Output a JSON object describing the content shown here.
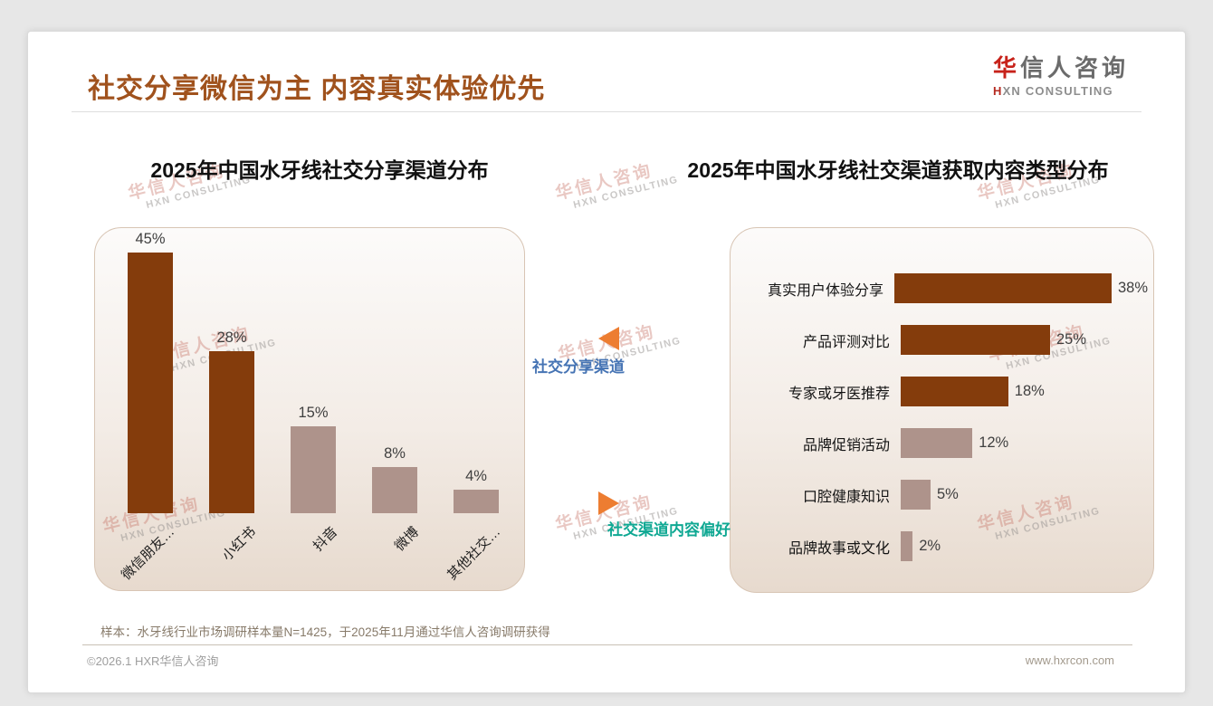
{
  "header": {
    "title": "社交分享微信为主 内容真实体验优先",
    "logo": {
      "zh_accent": "华",
      "zh_rest": "信人咨询",
      "en_accent": "H",
      "en_rest": "XN CONSULTING"
    }
  },
  "watermark": {
    "zh": "华信人咨询",
    "en": "HXN CONSULTING"
  },
  "connectors": {
    "share_channel_label": "社交分享渠道",
    "content_preference_label": "社交渠道内容偏好"
  },
  "footnote": "样本：水牙线行业市场调研样本量N=1425，于2025年11月通过华信人咨询调研获得",
  "footer": {
    "copyright": "©2026.1 HXR华信人咨询",
    "website": "www.hxrcon.com"
  },
  "colors": {
    "dark_brown_bar": "#843C0C",
    "mauve_bar": "#AE938B",
    "accent_orange": "#ED7D31",
    "title_brown": "#A0521D",
    "blue_label": "#4674B4",
    "teal_label": "#0FA893",
    "logo_red": "#C7221A"
  },
  "chart_data": [
    {
      "type": "bar",
      "orientation": "vertical",
      "title": "2025年中国水牙线社交分享渠道分布",
      "categories": [
        "微信朋友…",
        "小红书",
        "抖音",
        "微博",
        "其他社交…"
      ],
      "values": [
        45,
        28,
        15,
        8,
        4
      ],
      "value_labels": [
        "45%",
        "28%",
        "15%",
        "8%",
        "4%"
      ],
      "bar_colors": [
        "#843C0C",
        "#843C0C",
        "#AE938B",
        "#AE938B",
        "#AE938B"
      ],
      "ylim": [
        0,
        50
      ],
      "grid": false,
      "legend": false
    },
    {
      "type": "bar",
      "orientation": "horizontal",
      "title": "2025年中国水牙线社交渠道获取内容类型分布",
      "categories": [
        "真实用户体验分享",
        "产品评测对比",
        "专家或牙医推荐",
        "品牌促销活动",
        "口腔健康知识",
        "品牌故事或文化"
      ],
      "values": [
        38,
        25,
        18,
        12,
        5,
        2
      ],
      "value_labels": [
        "38%",
        "25%",
        "18%",
        "12%",
        "5%",
        "2%"
      ],
      "bar_colors": [
        "#843C0C",
        "#843C0C",
        "#843C0C",
        "#AE938B",
        "#AE938B",
        "#AE938B"
      ],
      "xlim": [
        0,
        40
      ],
      "grid": false,
      "legend": false
    }
  ]
}
